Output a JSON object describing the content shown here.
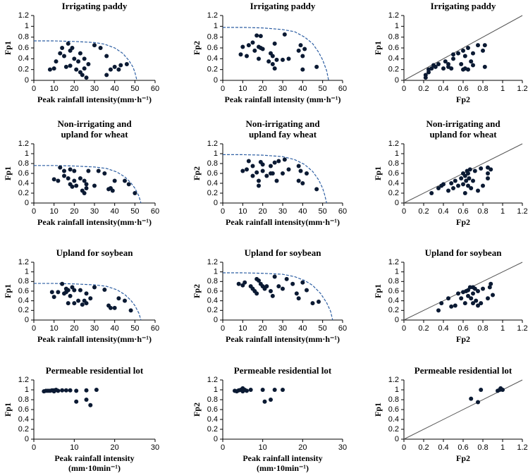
{
  "chart_data": [
    {
      "type": "scatter",
      "title": [
        "Irrigating paddy"
      ],
      "xlabel": [
        "Peak rainfall intensity(mm·h⁻¹)"
      ],
      "ylabel": "Fp1",
      "xlim": [
        0,
        60
      ],
      "xticks": [
        0,
        10,
        20,
        30,
        40,
        50,
        60
      ],
      "ylim": [
        0,
        1.2
      ],
      "yticks": [
        0,
        0.2,
        0.4,
        0.6,
        0.8,
        1,
        1.2
      ],
      "color": "#0b1a33",
      "points": {
        "x": [
          8,
          10,
          11,
          13,
          14,
          15,
          16,
          17,
          18,
          18,
          19,
          20,
          21,
          22,
          23,
          23,
          24,
          25,
          25,
          26,
          27,
          30,
          33,
          36,
          36,
          38,
          40,
          42,
          43,
          46
        ],
        "y": [
          0.2,
          0.22,
          0.35,
          0.5,
          0.6,
          0.45,
          0.25,
          0.68,
          0.55,
          0.27,
          0.6,
          0.4,
          0.2,
          0.35,
          0.5,
          0.15,
          0.1,
          0.22,
          0.4,
          0.05,
          0.3,
          0.65,
          0.6,
          0.45,
          0.1,
          0.2,
          0.25,
          0.2,
          0.28,
          0.3
        ]
      },
      "curve": {
        "x": [
          0,
          10,
          20,
          30,
          35,
          40,
          44,
          47,
          49,
          50,
          51
        ],
        "y": [
          0.73,
          0.73,
          0.72,
          0.7,
          0.67,
          0.6,
          0.5,
          0.37,
          0.25,
          0.15,
          0
        ],
        "color": "#2e5fa3",
        "style": "dashed"
      }
    },
    {
      "type": "scatter",
      "title": [
        "Irrigating paddy"
      ],
      "xlabel": [
        "Peak rainfall intensity (mm·h⁻¹)"
      ],
      "ylabel": "Fp2",
      "xlim": [
        0,
        60
      ],
      "xticks": [
        0,
        10,
        20,
        30,
        40,
        50,
        60
      ],
      "ylim": [
        0,
        1.2
      ],
      "yticks": [
        0,
        0.2,
        0.4,
        0.6,
        0.8,
        1,
        1.2
      ],
      "color": "#0b1a33",
      "points": {
        "x": [
          9,
          10,
          12,
          13,
          15,
          16,
          17,
          18,
          18,
          19,
          19,
          20,
          23,
          24,
          25,
          25,
          26,
          26,
          27,
          30,
          31,
          33,
          38,
          39,
          40,
          40,
          41,
          47
        ],
        "y": [
          0.48,
          0.62,
          0.45,
          0.65,
          0.7,
          0.55,
          0.83,
          0.62,
          0.4,
          0.82,
          0.6,
          0.58,
          0.35,
          0.5,
          0.45,
          0.3,
          0.22,
          0.68,
          0.38,
          0.38,
          0.85,
          0.4,
          0.55,
          0.65,
          0.2,
          0.45,
          0.58,
          0.25
        ]
      },
      "curve": {
        "x": [
          0,
          10,
          20,
          30,
          36,
          41,
          45,
          48,
          50,
          52,
          53
        ],
        "y": [
          0.98,
          0.98,
          0.97,
          0.94,
          0.9,
          0.8,
          0.68,
          0.52,
          0.38,
          0.18,
          0
        ],
        "color": "#2e5fa3",
        "style": "dashed"
      }
    },
    {
      "type": "scatter",
      "title": [
        "Irrigating paddy"
      ],
      "xlabel": [
        "Fp2"
      ],
      "ylabel": "Fp1",
      "xlim": [
        0,
        1.2
      ],
      "xticks": [
        0,
        0.2,
        0.4,
        0.6,
        0.8,
        1,
        1.2
      ],
      "ylim": [
        0,
        1.2
      ],
      "yticks": [
        0,
        0.2,
        0.4,
        0.6,
        0.8,
        1,
        1.2
      ],
      "color": "#0b1a33",
      "points": {
        "x": [
          0.22,
          0.22,
          0.25,
          0.25,
          0.28,
          0.3,
          0.32,
          0.35,
          0.4,
          0.42,
          0.45,
          0.48,
          0.5,
          0.5,
          0.55,
          0.58,
          0.6,
          0.6,
          0.62,
          0.62,
          0.65,
          0.65,
          0.68,
          0.7,
          0.75,
          0.8,
          0.82,
          0.82,
          0.7,
          0.45
        ],
        "y": [
          0.1,
          0.05,
          0.15,
          0.2,
          0.22,
          0.28,
          0.25,
          0.3,
          0.22,
          0.35,
          0.25,
          0.22,
          0.4,
          0.48,
          0.5,
          0.3,
          0.2,
          0.55,
          0.45,
          0.22,
          0.6,
          0.2,
          0.35,
          0.5,
          0.65,
          0.55,
          0.25,
          0.65,
          0.28,
          0.3
        ]
      },
      "reference_line": {
        "x": [
          0,
          1.2
        ],
        "y": [
          0,
          1.2
        ],
        "color": "#555555"
      }
    },
    {
      "type": "scatter",
      "title": [
        "Non-irrigating  and",
        "upland  for wheat"
      ],
      "xlabel": [
        "Peak rainfall intensity(mm·h⁻¹)"
      ],
      "ylabel": "Fp1",
      "xlim": [
        0,
        60
      ],
      "xticks": [
        0,
        10,
        20,
        30,
        40,
        50,
        60
      ],
      "ylim": [
        0,
        1.2
      ],
      "yticks": [
        0,
        0.2,
        0.4,
        0.6,
        0.8,
        1,
        1.2
      ],
      "color": "#0b1a33",
      "points": {
        "x": [
          10,
          12,
          13,
          15,
          15,
          17,
          18,
          18,
          19,
          20,
          20,
          21,
          23,
          25,
          25,
          26,
          26,
          27,
          30,
          32,
          35,
          37,
          38,
          39,
          40,
          45,
          47,
          50,
          24
        ],
        "y": [
          0.48,
          0.45,
          0.72,
          0.65,
          0.55,
          0.5,
          0.38,
          0.68,
          0.33,
          0.65,
          0.45,
          0.35,
          0.5,
          0.2,
          0.45,
          0.3,
          0.38,
          0.65,
          0.35,
          0.65,
          0.6,
          0.28,
          0.3,
          0.25,
          0.45,
          0.45,
          0.38,
          0.2,
          0.25
        ]
      },
      "curve": {
        "x": [
          0,
          10,
          20,
          30,
          36,
          41,
          45,
          48,
          50,
          52,
          53
        ],
        "y": [
          0.76,
          0.76,
          0.75,
          0.73,
          0.7,
          0.63,
          0.53,
          0.41,
          0.3,
          0.14,
          0
        ],
        "color": "#2e5fa3",
        "style": "dashed"
      }
    },
    {
      "type": "scatter",
      "title": [
        "Non-irrigating  and",
        "upland  fay wheat"
      ],
      "xlabel": [
        "Peak rainfall intensity(mm·h⁻¹)"
      ],
      "ylabel": "Fp2",
      "xlim": [
        0,
        60
      ],
      "xticks": [
        0,
        10,
        20,
        30,
        40,
        50,
        60
      ],
      "ylim": [
        0,
        1.2
      ],
      "yticks": [
        0,
        0.2,
        0.4,
        0.6,
        0.8,
        1,
        1.2
      ],
      "color": "#0b1a33",
      "points": {
        "x": [
          10,
          12,
          13,
          15,
          15,
          17,
          18,
          18,
          19,
          20,
          20,
          22,
          24,
          25,
          26,
          27,
          28,
          30,
          31,
          33,
          38,
          38,
          39,
          40,
          42,
          47,
          24
        ],
        "y": [
          0.65,
          0.68,
          0.85,
          0.75,
          0.55,
          0.62,
          0.45,
          0.35,
          0.83,
          0.78,
          0.65,
          0.55,
          0.6,
          0.6,
          0.82,
          0.45,
          0.85,
          0.6,
          0.88,
          0.68,
          0.45,
          0.75,
          0.65,
          0.4,
          0.6,
          0.28,
          0.75
        ]
      },
      "curve": {
        "x": [
          0,
          10,
          20,
          30,
          36,
          41,
          45,
          48,
          50,
          51,
          52
        ],
        "y": [
          0.98,
          0.98,
          0.97,
          0.94,
          0.88,
          0.78,
          0.64,
          0.47,
          0.3,
          0.17,
          0
        ],
        "color": "#2e5fa3",
        "style": "dashed"
      }
    },
    {
      "type": "scatter",
      "title": [
        "Non-irrigating  and",
        "upland  for wheat"
      ],
      "xlabel": [
        "Fp2"
      ],
      "ylabel": "Fp1",
      "xlim": [
        0,
        1.2
      ],
      "xticks": [
        0,
        0.2,
        0.4,
        0.6,
        0.8,
        1,
        1.2
      ],
      "ylim": [
        0,
        1.2
      ],
      "yticks": [
        0,
        0.2,
        0.4,
        0.6,
        0.8,
        1,
        1.2
      ],
      "color": "#0b1a33",
      "points": {
        "x": [
          0.28,
          0.35,
          0.38,
          0.4,
          0.45,
          0.48,
          0.5,
          0.52,
          0.55,
          0.58,
          0.6,
          0.6,
          0.62,
          0.62,
          0.63,
          0.64,
          0.65,
          0.65,
          0.66,
          0.67,
          0.68,
          0.7,
          0.72,
          0.75,
          0.78,
          0.8,
          0.85,
          0.85,
          0.88,
          0.85
        ],
        "y": [
          0.2,
          0.3,
          0.35,
          0.38,
          0.25,
          0.4,
          0.3,
          0.45,
          0.35,
          0.5,
          0.38,
          0.6,
          0.2,
          0.55,
          0.45,
          0.65,
          0.35,
          0.6,
          0.5,
          0.68,
          0.3,
          0.45,
          0.65,
          0.25,
          0.7,
          0.35,
          0.6,
          0.72,
          0.68,
          0.5
        ]
      },
      "reference_line": {
        "x": [
          0,
          1.2
        ],
        "y": [
          0,
          1.2
        ],
        "color": "#555555"
      }
    },
    {
      "type": "scatter",
      "title": [
        "Upland  for soybean"
      ],
      "xlabel": [
        "Peak rainfall intensity(mm·h⁻¹)"
      ],
      "ylabel": "Fp1",
      "xlim": [
        0,
        60
      ],
      "xticks": [
        0,
        10,
        20,
        30,
        40,
        50,
        60
      ],
      "ylim": [
        0,
        1.2
      ],
      "yticks": [
        0,
        0.2,
        0.4,
        0.6,
        0.8,
        1,
        1.2
      ],
      "color": "#0b1a33",
      "points": {
        "x": [
          9,
          10,
          12,
          14,
          15,
          16,
          17,
          17,
          18,
          19,
          20,
          20,
          22,
          23,
          24,
          25,
          26,
          28,
          30,
          35,
          37,
          38,
          40,
          42,
          45,
          48,
          16,
          26
        ],
        "y": [
          0.58,
          0.48,
          0.58,
          0.75,
          0.55,
          0.58,
          0.35,
          0.62,
          0.5,
          0.68,
          0.35,
          0.62,
          0.4,
          0.62,
          0.32,
          0.4,
          0.55,
          0.45,
          0.68,
          0.63,
          0.3,
          0.25,
          0.25,
          0.45,
          0.4,
          0.2,
          0.65,
          0.35
        ]
      },
      "curve": {
        "x": [
          0,
          10,
          20,
          30,
          36,
          41,
          45,
          48,
          50,
          52,
          53
        ],
        "y": [
          0.76,
          0.76,
          0.75,
          0.73,
          0.7,
          0.63,
          0.53,
          0.41,
          0.3,
          0.14,
          0
        ],
        "color": "#2e5fa3",
        "style": "dashed"
      }
    },
    {
      "type": "scatter",
      "title": [
        "Upland  for soybean"
      ],
      "xlabel": [
        "Peak rainfall intensity(mm·h⁻¹)"
      ],
      "ylabel": "Fp2",
      "xlim": [
        0,
        60
      ],
      "xticks": [
        0,
        10,
        20,
        30,
        40,
        50,
        60
      ],
      "ylim": [
        0,
        1.2
      ],
      "yticks": [
        0,
        0.2,
        0.4,
        0.6,
        0.8,
        1,
        1.2
      ],
      "color": "#0b1a33",
      "points": {
        "x": [
          8,
          10,
          11,
          14,
          15,
          16,
          17,
          18,
          19,
          20,
          21,
          22,
          24,
          25,
          26,
          28,
          30,
          32,
          35,
          37,
          38,
          40,
          42,
          45,
          48,
          17
        ],
        "y": [
          0.75,
          0.72,
          0.78,
          0.7,
          0.65,
          0.6,
          0.55,
          0.82,
          0.75,
          0.7,
          0.65,
          0.7,
          0.6,
          0.5,
          0.9,
          0.7,
          0.65,
          0.85,
          0.75,
          0.55,
          0.45,
          0.78,
          0.62,
          0.35,
          0.38,
          0.85
        ]
      },
      "curve": {
        "x": [
          0,
          10,
          20,
          30,
          36,
          41,
          45,
          49,
          52,
          54,
          55
        ],
        "y": [
          0.98,
          0.98,
          0.97,
          0.95,
          0.9,
          0.82,
          0.72,
          0.55,
          0.36,
          0.18,
          0
        ],
        "color": "#2e5fa3",
        "style": "dashed"
      }
    },
    {
      "type": "scatter",
      "title": [
        "Upland  for soybean"
      ],
      "xlabel": [
        "Fp2"
      ],
      "ylabel": "Fp1",
      "xlim": [
        0,
        1.2
      ],
      "xticks": [
        0,
        0.2,
        0.4,
        0.6,
        0.8,
        1,
        1.2
      ],
      "ylim": [
        0,
        1.2
      ],
      "yticks": [
        0,
        0.2,
        0.4,
        0.6,
        0.8,
        1,
        1.2
      ],
      "color": "#0b1a33",
      "points": {
        "x": [
          0.35,
          0.38,
          0.45,
          0.48,
          0.52,
          0.55,
          0.58,
          0.6,
          0.62,
          0.63,
          0.65,
          0.65,
          0.67,
          0.68,
          0.7,
          0.7,
          0.72,
          0.73,
          0.75,
          0.75,
          0.78,
          0.8,
          0.85,
          0.87,
          0.88,
          0.9,
          0.7
        ],
        "y": [
          0.2,
          0.35,
          0.45,
          0.28,
          0.3,
          0.55,
          0.45,
          0.58,
          0.35,
          0.6,
          0.5,
          0.62,
          0.68,
          0.45,
          0.35,
          0.55,
          0.65,
          0.4,
          0.3,
          0.6,
          0.35,
          0.65,
          0.45,
          0.68,
          0.75,
          0.52,
          0.68
        ]
      },
      "reference_line": {
        "x": [
          0,
          1.2
        ],
        "y": [
          0,
          1.2
        ],
        "color": "#555555"
      }
    },
    {
      "type": "scatter",
      "title": [
        "Permeable  residential  lot"
      ],
      "xlabel": [
        "Peak rainfall intensity",
        "(mm·10min⁻¹)"
      ],
      "ylabel": "Fp1",
      "xlim": [
        0,
        30
      ],
      "xticks": [
        0,
        10,
        20,
        30
      ],
      "ylim": [
        0,
        1.2
      ],
      "yticks": [
        0,
        0.2,
        0.4,
        0.6,
        0.8,
        1,
        1.2
      ],
      "color": "#0b1a33",
      "points": {
        "x": [
          2.5,
          3,
          3.5,
          4,
          4.5,
          5,
          5.5,
          6,
          7,
          8,
          9,
          10.5,
          10.5,
          13,
          13,
          14,
          15.5,
          5
        ],
        "y": [
          0.97,
          0.98,
          0.98,
          0.98,
          0.99,
          0.97,
          1,
          0.98,
          0.99,
          0.99,
          0.99,
          0.98,
          0.76,
          0.8,
          0.99,
          0.69,
          1,
          0.99
        ]
      }
    },
    {
      "type": "scatter",
      "title": [
        "Permeable  residential  lot"
      ],
      "xlabel": [
        "Peak rainfall intensity",
        "(mm·10min⁻¹)"
      ],
      "ylabel": "Fp2",
      "xlim": [
        0,
        30
      ],
      "xticks": [
        0,
        10,
        20,
        30
      ],
      "ylim": [
        0,
        1.2
      ],
      "yticks": [
        0,
        0.2,
        0.4,
        0.6,
        0.8,
        1,
        1.2
      ],
      "color": "#0b1a33",
      "points": {
        "x": [
          3,
          3.5,
          4,
          4.5,
          5,
          5.5,
          6,
          7,
          10,
          10.5,
          12,
          13,
          15,
          5
        ],
        "y": [
          0.98,
          0.97,
          0.99,
          1,
          1.03,
          1,
          0.98,
          1,
          1,
          0.76,
          0.8,
          1,
          1,
          0.97
        ]
      }
    },
    {
      "type": "scatter",
      "title": [
        "Permeable  residential  lot"
      ],
      "xlabel": [
        "Fp2"
      ],
      "ylabel": "Fp1",
      "xlim": [
        0,
        1.2
      ],
      "xticks": [
        0,
        0.2,
        0.4,
        0.6,
        0.8,
        1,
        1.2
      ],
      "ylim": [
        0,
        1.2
      ],
      "yticks": [
        0,
        0.2,
        0.4,
        0.6,
        0.8,
        1,
        1.2
      ],
      "color": "#0b1a33",
      "points": {
        "x": [
          0.68,
          0.75,
          0.78,
          0.95,
          0.97,
          0.98,
          1
        ],
        "y": [
          0.82,
          0.75,
          1,
          0.98,
          1,
          1.03,
          1
        ]
      },
      "reference_line": {
        "x": [
          0,
          1.2
        ],
        "y": [
          0,
          1.2
        ],
        "color": "#555555"
      }
    }
  ]
}
